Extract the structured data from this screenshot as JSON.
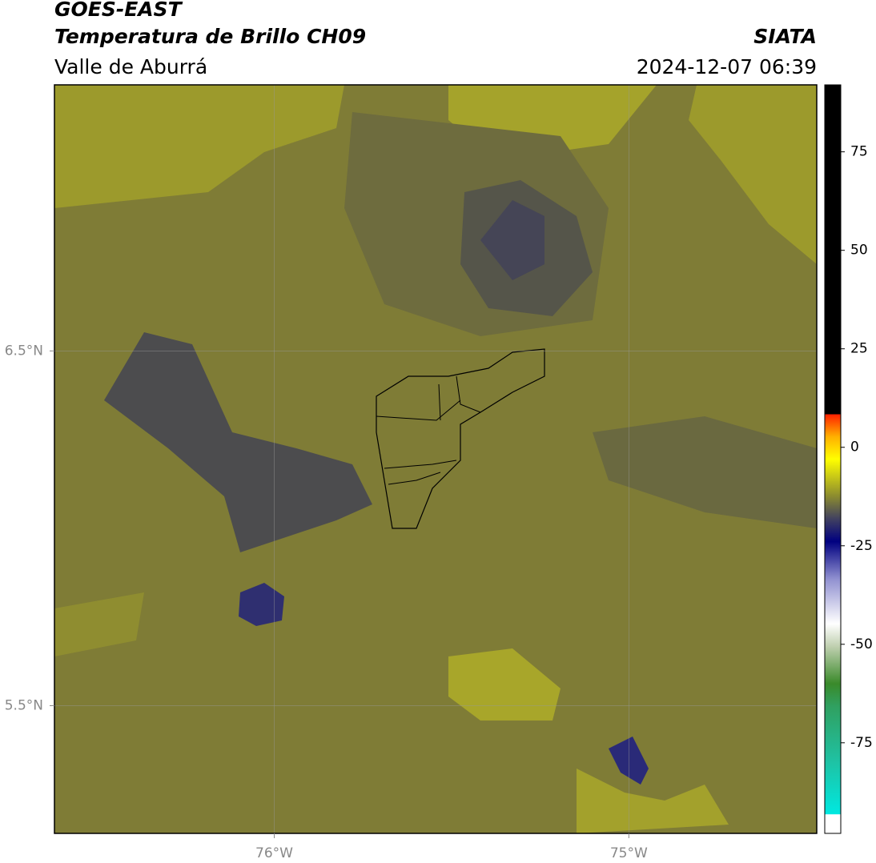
{
  "header": {
    "title": "GOES-EAST",
    "subtitle": "Temperatura de Brillo CH09",
    "region": "Valle de Aburrá",
    "source": "SIATA",
    "datetime": "2024-12-07 06:39"
  },
  "map": {
    "lonlim": [
      -76.62,
      -74.47
    ],
    "latlim": [
      5.14,
      7.25
    ],
    "lonticks": [
      {
        "value": -76,
        "label": "76°W"
      },
      {
        "value": -75,
        "label": "75°W"
      }
    ],
    "latticks": [
      {
        "value": 6.5,
        "label": "6.5°N"
      },
      {
        "value": 5.5,
        "label": "5.5°N"
      }
    ],
    "grid": true
  },
  "colorbar": {
    "lim": [
      -98,
      92
    ],
    "ticks": [
      75,
      50,
      25,
      0,
      -25,
      -50,
      -75
    ]
  }
}
